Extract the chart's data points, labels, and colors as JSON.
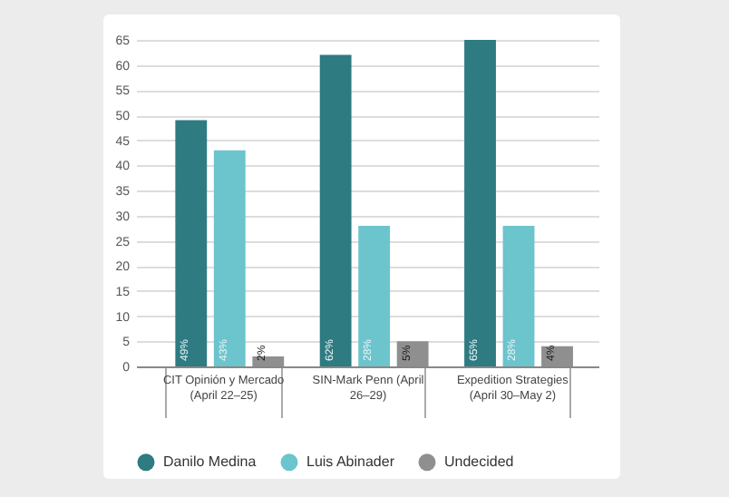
{
  "chart_data": {
    "type": "bar",
    "categories": [
      "CIT Opinión y Mercado (April 22–25)",
      "SIN-Mark Penn (April 26–29)",
      "Expedition Strategies (April 30–May 2)"
    ],
    "series": [
      {
        "name": "Danilo Medina",
        "color": "#2e7b82",
        "values": [
          49,
          62,
          65
        ],
        "value_labels": [
          "49%",
          "62%",
          "65%"
        ]
      },
      {
        "name": "Luis Abinader",
        "color": "#6cc4cd",
        "values": [
          43,
          28,
          28
        ],
        "value_labels": [
          "43%",
          "28%",
          "28%"
        ]
      },
      {
        "name": "Undecided",
        "color": "#8f8f8f",
        "values": [
          2,
          5,
          4
        ],
        "value_labels": [
          "2%",
          "5%",
          "4%"
        ]
      }
    ],
    "ylim": [
      0,
      65
    ],
    "yticks": [
      0,
      5,
      10,
      15,
      20,
      25,
      30,
      35,
      40,
      45,
      50,
      55,
      60,
      65
    ],
    "grid": "y",
    "legend": "bottom"
  }
}
